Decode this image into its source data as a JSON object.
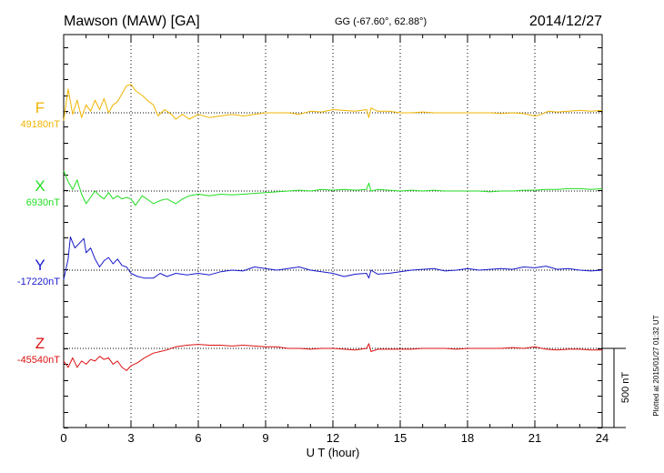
{
  "header": {
    "station": "Mawson (MAW)  [GA]",
    "coords": "GG (-67.60°,  62.88°)",
    "date": "2014/12/27"
  },
  "footer": {
    "plotted": "Plotted at 2015/01/27 01:32 UT"
  },
  "scale_bar": {
    "label": "500 nT",
    "value_nT": 500
  },
  "chart_data": {
    "type": "line",
    "xlabel": "U T (hour)",
    "xlim": [
      0,
      24
    ],
    "xticks": [
      "0",
      "3",
      "6",
      "9",
      "12",
      "15",
      "18",
      "21",
      "24"
    ],
    "grid": true,
    "series": [
      {
        "name": "F",
        "baseline_label": "49180nT",
        "baseline_nT": 49180,
        "color": "#f0b400",
        "points": [
          [
            0,
            49130
          ],
          [
            0.2,
            49330
          ],
          [
            0.4,
            49170
          ],
          [
            0.6,
            49260
          ],
          [
            0.8,
            49150
          ],
          [
            1.0,
            49230
          ],
          [
            1.2,
            49190
          ],
          [
            1.4,
            49260
          ],
          [
            1.6,
            49200
          ],
          [
            1.8,
            49270
          ],
          [
            2.0,
            49180
          ],
          [
            2.2,
            49230
          ],
          [
            2.4,
            49250
          ],
          [
            2.6,
            49300
          ],
          [
            2.8,
            49350
          ],
          [
            3.0,
            49360
          ],
          [
            3.2,
            49320
          ],
          [
            3.5,
            49290
          ],
          [
            3.8,
            49250
          ],
          [
            4.0,
            49230
          ],
          [
            4.2,
            49160
          ],
          [
            4.5,
            49200
          ],
          [
            4.8,
            49170
          ],
          [
            5.0,
            49140
          ],
          [
            5.3,
            49170
          ],
          [
            5.6,
            49140
          ],
          [
            6.0,
            49170
          ],
          [
            6.5,
            49150
          ],
          [
            7.0,
            49160
          ],
          [
            7.5,
            49170
          ],
          [
            8.0,
            49160
          ],
          [
            8.5,
            49170
          ],
          [
            9.0,
            49180
          ],
          [
            9.5,
            49180
          ],
          [
            10.0,
            49180
          ],
          [
            10.5,
            49170
          ],
          [
            11.0,
            49190
          ],
          [
            11.5,
            49185
          ],
          [
            12.0,
            49200
          ],
          [
            12.5,
            49195
          ],
          [
            13.0,
            49190
          ],
          [
            13.5,
            49200
          ],
          [
            13.6,
            49150
          ],
          [
            13.7,
            49210
          ],
          [
            14.0,
            49190
          ],
          [
            14.5,
            49190
          ],
          [
            15.0,
            49180
          ],
          [
            15.5,
            49180
          ],
          [
            16.0,
            49185
          ],
          [
            16.5,
            49180
          ],
          [
            17.0,
            49180
          ],
          [
            17.5,
            49180
          ],
          [
            18.0,
            49180
          ],
          [
            18.5,
            49180
          ],
          [
            19.0,
            49180
          ],
          [
            19.5,
            49175
          ],
          [
            20.0,
            49180
          ],
          [
            20.5,
            49175
          ],
          [
            21.0,
            49160
          ],
          [
            21.3,
            49170
          ],
          [
            21.6,
            49190
          ],
          [
            22.0,
            49185
          ],
          [
            22.5,
            49190
          ],
          [
            23.0,
            49195
          ],
          [
            23.5,
            49190
          ],
          [
            24.0,
            49195
          ]
        ]
      },
      {
        "name": "X",
        "baseline_label": "6930nT",
        "baseline_nT": 6930,
        "color": "#22dd22",
        "points": [
          [
            0,
            7060
          ],
          [
            0.2,
            6990
          ],
          [
            0.4,
            6940
          ],
          [
            0.6,
            7000
          ],
          [
            0.8,
            6910
          ],
          [
            1.0,
            6850
          ],
          [
            1.2,
            6890
          ],
          [
            1.4,
            6930
          ],
          [
            1.6,
            6900
          ],
          [
            1.8,
            6880
          ],
          [
            2.0,
            6920
          ],
          [
            2.2,
            6880
          ],
          [
            2.4,
            6900
          ],
          [
            2.6,
            6880
          ],
          [
            2.8,
            6890
          ],
          [
            3.0,
            6880
          ],
          [
            3.2,
            6840
          ],
          [
            3.5,
            6900
          ],
          [
            3.8,
            6870
          ],
          [
            4.0,
            6850
          ],
          [
            4.3,
            6870
          ],
          [
            4.6,
            6880
          ],
          [
            5.0,
            6850
          ],
          [
            5.3,
            6880
          ],
          [
            5.6,
            6900
          ],
          [
            6.0,
            6910
          ],
          [
            6.5,
            6900
          ],
          [
            7.0,
            6910
          ],
          [
            7.5,
            6905
          ],
          [
            8.0,
            6910
          ],
          [
            8.5,
            6915
          ],
          [
            9.0,
            6920
          ],
          [
            9.5,
            6925
          ],
          [
            10.0,
            6930
          ],
          [
            10.5,
            6935
          ],
          [
            11.0,
            6930
          ],
          [
            11.5,
            6940
          ],
          [
            12.0,
            6935
          ],
          [
            12.5,
            6940
          ],
          [
            13.0,
            6935
          ],
          [
            13.5,
            6940
          ],
          [
            13.6,
            6980
          ],
          [
            13.7,
            6930
          ],
          [
            14.0,
            6940
          ],
          [
            14.5,
            6935
          ],
          [
            15.0,
            6930
          ],
          [
            15.5,
            6935
          ],
          [
            16.0,
            6930
          ],
          [
            16.5,
            6935
          ],
          [
            17.0,
            6930
          ],
          [
            17.5,
            6930
          ],
          [
            18.0,
            6930
          ],
          [
            18.5,
            6930
          ],
          [
            19.0,
            6925
          ],
          [
            19.5,
            6930
          ],
          [
            20.0,
            6930
          ],
          [
            20.5,
            6935
          ],
          [
            21.0,
            6935
          ],
          [
            21.5,
            6940
          ],
          [
            22.0,
            6940
          ],
          [
            22.5,
            6945
          ],
          [
            23.0,
            6945
          ],
          [
            23.5,
            6940
          ],
          [
            24.0,
            6945
          ]
        ]
      },
      {
        "name": "Y",
        "baseline_label": "-17220nT",
        "baseline_nT": -17220,
        "color": "#1a1acc",
        "points": [
          [
            0,
            -17280
          ],
          [
            0.2,
            -17150
          ],
          [
            0.3,
            -17010
          ],
          [
            0.5,
            -17080
          ],
          [
            0.7,
            -17050
          ],
          [
            0.9,
            -17020
          ],
          [
            1.0,
            -17110
          ],
          [
            1.2,
            -17080
          ],
          [
            1.4,
            -17150
          ],
          [
            1.6,
            -17200
          ],
          [
            1.8,
            -17160
          ],
          [
            2.0,
            -17140
          ],
          [
            2.2,
            -17180
          ],
          [
            2.4,
            -17150
          ],
          [
            2.6,
            -17190
          ],
          [
            2.8,
            -17200
          ],
          [
            3.0,
            -17240
          ],
          [
            3.3,
            -17260
          ],
          [
            3.6,
            -17270
          ],
          [
            4.0,
            -17270
          ],
          [
            4.3,
            -17240
          ],
          [
            4.6,
            -17260
          ],
          [
            5.0,
            -17240
          ],
          [
            5.5,
            -17250
          ],
          [
            6.0,
            -17240
          ],
          [
            6.5,
            -17250
          ],
          [
            7.0,
            -17230
          ],
          [
            7.5,
            -17220
          ],
          [
            8.0,
            -17225
          ],
          [
            8.5,
            -17200
          ],
          [
            9.0,
            -17210
          ],
          [
            9.5,
            -17220
          ],
          [
            10.0,
            -17210
          ],
          [
            10.5,
            -17200
          ],
          [
            11.0,
            -17220
          ],
          [
            11.5,
            -17230
          ],
          [
            12.0,
            -17240
          ],
          [
            12.5,
            -17260
          ],
          [
            13.0,
            -17245
          ],
          [
            13.5,
            -17240
          ],
          [
            13.6,
            -17270
          ],
          [
            13.7,
            -17220
          ],
          [
            14.0,
            -17245
          ],
          [
            14.5,
            -17240
          ],
          [
            15.0,
            -17230
          ],
          [
            15.5,
            -17220
          ],
          [
            16.0,
            -17215
          ],
          [
            16.5,
            -17210
          ],
          [
            17.0,
            -17225
          ],
          [
            17.5,
            -17220
          ],
          [
            18.0,
            -17210
          ],
          [
            18.5,
            -17220
          ],
          [
            19.0,
            -17215
          ],
          [
            19.5,
            -17210
          ],
          [
            20.0,
            -17215
          ],
          [
            20.5,
            -17200
          ],
          [
            21.0,
            -17205
          ],
          [
            21.5,
            -17195
          ],
          [
            22.0,
            -17215
          ],
          [
            22.5,
            -17210
          ],
          [
            23.0,
            -17220
          ],
          [
            23.5,
            -17225
          ],
          [
            24.0,
            -17220
          ]
        ]
      },
      {
        "name": "Z",
        "baseline_label": "-45540nT",
        "baseline_nT": -45540,
        "color": "#dd1111",
        "points": [
          [
            0,
            -45620
          ],
          [
            0.2,
            -45660
          ],
          [
            0.4,
            -45600
          ],
          [
            0.6,
            -45660
          ],
          [
            0.8,
            -45620
          ],
          [
            1.0,
            -45640
          ],
          [
            1.2,
            -45610
          ],
          [
            1.4,
            -45620
          ],
          [
            1.6,
            -45590
          ],
          [
            1.8,
            -45610
          ],
          [
            2.0,
            -45600
          ],
          [
            2.2,
            -45640
          ],
          [
            2.4,
            -45620
          ],
          [
            2.6,
            -45660
          ],
          [
            2.8,
            -45680
          ],
          [
            3.0,
            -45650
          ],
          [
            3.3,
            -45630
          ],
          [
            3.6,
            -45600
          ],
          [
            4.0,
            -45570
          ],
          [
            4.3,
            -45560
          ],
          [
            4.6,
            -45550
          ],
          [
            5.0,
            -45530
          ],
          [
            5.5,
            -45520
          ],
          [
            6.0,
            -45515
          ],
          [
            6.5,
            -45520
          ],
          [
            7.0,
            -45520
          ],
          [
            7.5,
            -45525
          ],
          [
            8.0,
            -45520
          ],
          [
            8.5,
            -45525
          ],
          [
            9.0,
            -45530
          ],
          [
            9.5,
            -45530
          ],
          [
            10.0,
            -45540
          ],
          [
            10.5,
            -45540
          ],
          [
            11.0,
            -45545
          ],
          [
            11.5,
            -45540
          ],
          [
            12.0,
            -45540
          ],
          [
            12.5,
            -45545
          ],
          [
            13.0,
            -45550
          ],
          [
            13.5,
            -45540
          ],
          [
            13.6,
            -45510
          ],
          [
            13.7,
            -45560
          ],
          [
            14.0,
            -45545
          ],
          [
            14.5,
            -45545
          ],
          [
            15.0,
            -45545
          ],
          [
            15.5,
            -45545
          ],
          [
            16.0,
            -45540
          ],
          [
            16.5,
            -45540
          ],
          [
            17.0,
            -45540
          ],
          [
            17.5,
            -45545
          ],
          [
            18.0,
            -45540
          ],
          [
            18.5,
            -45540
          ],
          [
            19.0,
            -45540
          ],
          [
            19.5,
            -45540
          ],
          [
            20.0,
            -45535
          ],
          [
            20.5,
            -45540
          ],
          [
            21.0,
            -45530
          ],
          [
            21.5,
            -45545
          ],
          [
            22.0,
            -45550
          ],
          [
            22.5,
            -45545
          ],
          [
            23.0,
            -45545
          ],
          [
            23.5,
            -45550
          ],
          [
            24.0,
            -45550
          ]
        ]
      }
    ]
  }
}
